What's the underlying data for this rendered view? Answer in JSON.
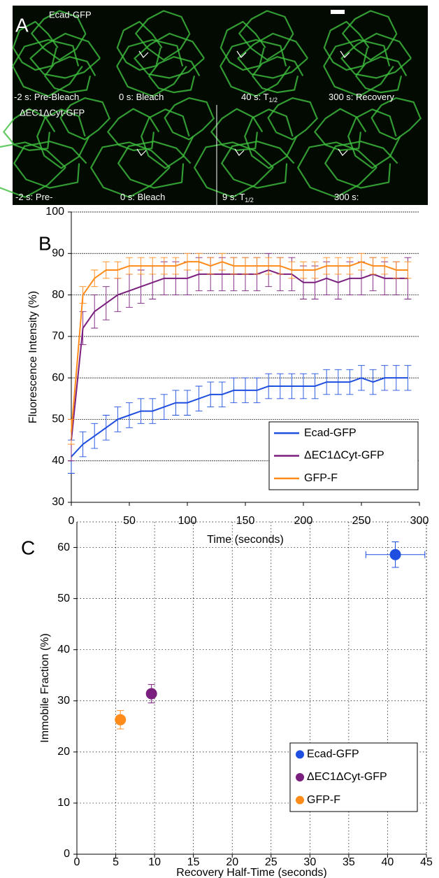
{
  "panel_a": {
    "label": "A",
    "row_labels": [
      "Ecad-GFP",
      "ΔEC1ΔCyt-GFP"
    ],
    "frames": [
      [
        {
          "text": "-2 s: Pre-Bleach"
        },
        {
          "text": "0 s: Bleach"
        },
        {
          "text": "40 s: T",
          "subscript": "1/2"
        },
        {
          "text": "300 s: Recovery"
        }
      ],
      [
        {
          "text": "-2 s: Pre-"
        },
        {
          "text": "0 s: Bleach"
        },
        {
          "text": "9 s: T",
          "subscript": "1/2"
        },
        {
          "text": "300 s:"
        }
      ]
    ]
  },
  "chart_data": [
    {
      "type": "line",
      "panel_label": "B",
      "x_label": "Time (seconds)",
      "y_label": "Fluorescence Intensity (%)",
      "x": [
        0,
        10,
        20,
        30,
        40,
        50,
        60,
        70,
        80,
        90,
        100,
        110,
        120,
        130,
        140,
        150,
        160,
        170,
        180,
        190,
        200,
        210,
        220,
        230,
        240,
        250,
        260,
        270,
        280,
        290
      ],
      "series": [
        {
          "name": "Ecad-GFP",
          "color": "#1f4fe0",
          "values": [
            41,
            44,
            46,
            48,
            50,
            51,
            52,
            52,
            53,
            54,
            54,
            55,
            56,
            56,
            57,
            57,
            57,
            58,
            58,
            58,
            58,
            58,
            59,
            59,
            59,
            60,
            59,
            60,
            60,
            60
          ],
          "errors": [
            4,
            3,
            3,
            3,
            3,
            3,
            3,
            3,
            3,
            3,
            3,
            3,
            3,
            3,
            3,
            3,
            3,
            3,
            3,
            3,
            3,
            3,
            3,
            3,
            3,
            3,
            3,
            3,
            3,
            3
          ]
        },
        {
          "name": "ΔEC1ΔCyt-GFP",
          "color": "#7b1f7e",
          "values": [
            45,
            72,
            76,
            78,
            80,
            81,
            82,
            83,
            84,
            84,
            84,
            85,
            85,
            85,
            85,
            85,
            85,
            86,
            85,
            85,
            83,
            83,
            84,
            83,
            84,
            84,
            85,
            84,
            84,
            84
          ],
          "errors": [
            5,
            4,
            4,
            4,
            4,
            4,
            4,
            4,
            4,
            4,
            4,
            4,
            4,
            4,
            4,
            4,
            4,
            4,
            4,
            4,
            4,
            4,
            4,
            4,
            4,
            4,
            4,
            4,
            4,
            5
          ]
        },
        {
          "name": "GFP-F",
          "color": "#ff8c1a",
          "values": [
            47,
            80,
            84,
            86,
            86,
            87,
            87,
            87,
            87,
            87,
            88,
            88,
            87,
            88,
            87,
            87,
            87,
            87,
            87,
            86,
            86,
            86,
            87,
            87,
            87,
            88,
            87,
            87,
            86,
            86
          ],
          "errors": [
            3,
            2,
            2,
            2,
            2,
            2,
            2,
            2,
            2,
            2,
            2,
            2,
            2,
            2,
            2,
            2,
            2,
            2,
            2,
            2,
            2,
            2,
            2,
            2,
            2,
            2,
            2,
            2,
            2,
            2
          ]
        }
      ],
      "xlim": [
        0,
        300
      ],
      "xticks": [
        0,
        50,
        100,
        150,
        200,
        250,
        300
      ],
      "ylim": [
        30,
        100
      ],
      "yticks": [
        30,
        40,
        50,
        60,
        70,
        80,
        90,
        100
      ],
      "grid": true,
      "legend": "lower-right"
    },
    {
      "type": "scatter",
      "panel_label": "C",
      "x_label": "Recovery Half-Time (seconds)",
      "y_label": "Immobile Fraction (%)",
      "series": [
        {
          "name": "Ecad-GFP",
          "color": "#1f4fe0",
          "x": [
            41
          ],
          "values": [
            58.6
          ],
          "xerr": [
            3.8
          ],
          "yerr": [
            2.5
          ]
        },
        {
          "name": "ΔEC1ΔCyt-GFP",
          "color": "#7b1f7e",
          "x": [
            9.6
          ],
          "values": [
            31.4
          ],
          "xerr": [
            0.5
          ],
          "yerr": [
            1.8
          ]
        },
        {
          "name": "GFP-F",
          "color": "#ff8c1a",
          "x": [
            5.6
          ],
          "values": [
            26.3
          ],
          "xerr": [
            0.5
          ],
          "yerr": [
            1.8
          ]
        }
      ],
      "xlim": [
        0,
        45
      ],
      "xticks": [
        0,
        5,
        10,
        15,
        20,
        25,
        30,
        35,
        40,
        45
      ],
      "ylim": [
        0,
        65
      ],
      "yticks": [
        0,
        10,
        20,
        30,
        40,
        50,
        60
      ],
      "grid": true,
      "legend": "lower-right"
    }
  ]
}
